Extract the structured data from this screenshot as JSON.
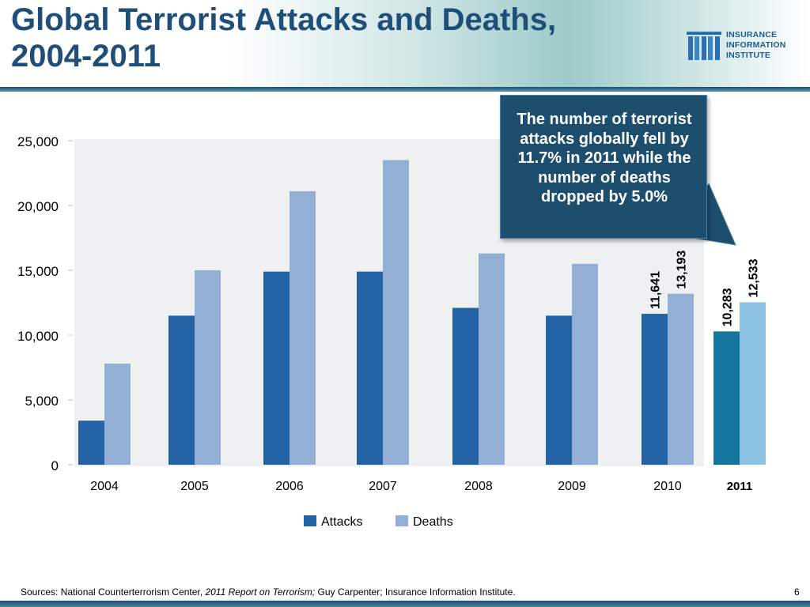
{
  "slide": {
    "title": "Global Terrorist Attacks and Deaths, 2004-2011",
    "logo_lines": [
      "INSURANCE",
      "INFORMATION",
      "INSTITUTE"
    ],
    "callout": "The number of terrorist attacks globally fell by 11.7% in 2011 while the number of deaths dropped by 5.0%",
    "sources_prefix": "Sources:  National Counterterrorism Center, ",
    "sources_italic": "2011 Report on Terrorism;",
    "sources_suffix": " Guy Carpenter; Insurance Information Institute.",
    "page_number": "6"
  },
  "colors": {
    "title": "#1f4e79",
    "attacks": "#2462a6",
    "deaths": "#93afd6",
    "attacks_2011": "#14769e",
    "deaths_2011": "#8cc3e2",
    "callout_bg": "#1d4e6e"
  },
  "chart_data": {
    "type": "bar",
    "categories": [
      "2004",
      "2005",
      "2006",
      "2007",
      "2008",
      "2009",
      "2010",
      "2011"
    ],
    "series": [
      {
        "name": "Attacks",
        "values": [
          3400,
          11500,
          14900,
          14900,
          12100,
          11500,
          11641,
          10283
        ]
      },
      {
        "name": "Deaths",
        "values": [
          7800,
          15000,
          21100,
          23500,
          16300,
          15500,
          13193,
          12533
        ]
      }
    ],
    "data_labels": [
      {
        "series": "Attacks",
        "category": "2010",
        "text": "11,641"
      },
      {
        "series": "Deaths",
        "category": "2010",
        "text": "13,193"
      },
      {
        "series": "Attacks",
        "category": "2011",
        "text": "10,283"
      },
      {
        "series": "Deaths",
        "category": "2011",
        "text": "12,533"
      }
    ],
    "y_ticks": [
      "0",
      "5,000",
      "10,000",
      "15,000",
      "20,000",
      "25,000"
    ],
    "ylim": [
      0,
      25000
    ],
    "legend": [
      "Attacks",
      "Deaths"
    ],
    "legend_position": "bottom",
    "grid": false
  }
}
